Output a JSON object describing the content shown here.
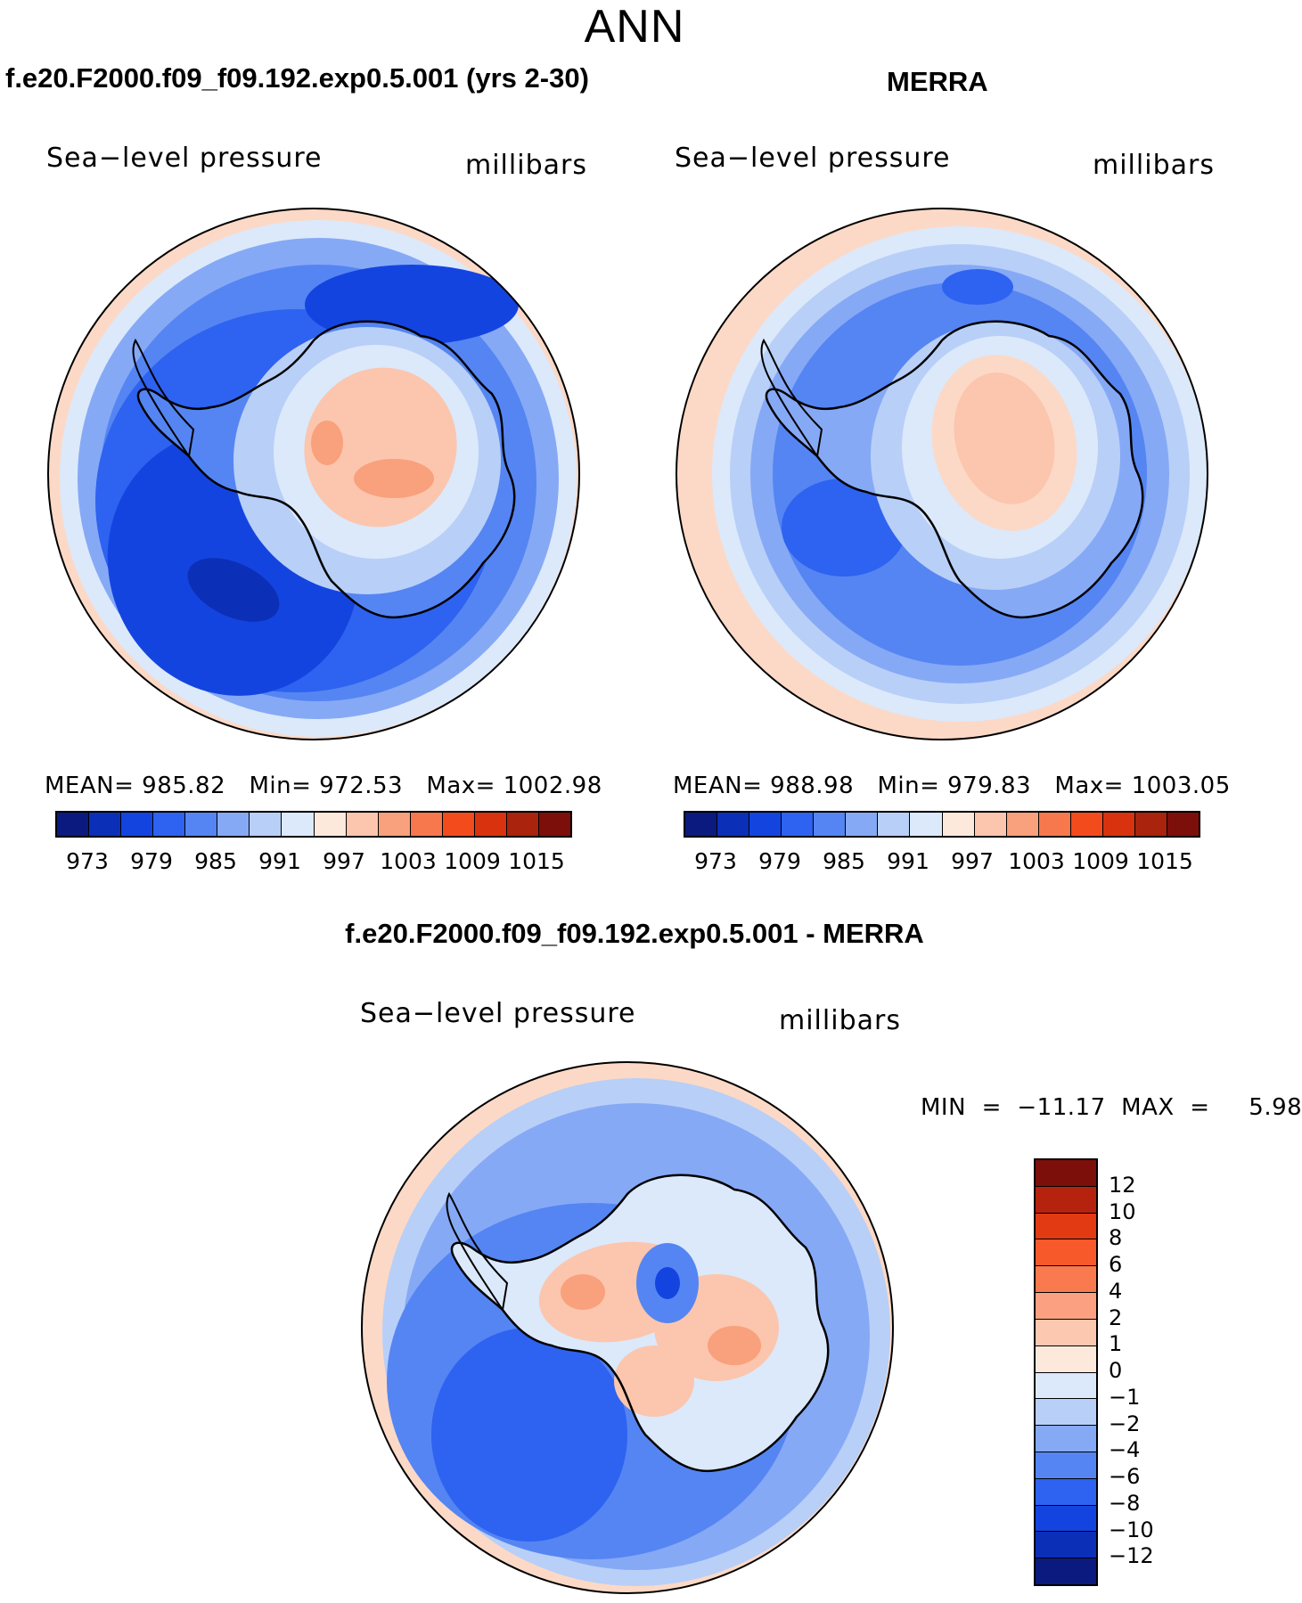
{
  "season": "ANN",
  "panels": {
    "model": {
      "title": "f.e20.F2000.f09_f09.192.exp0.5.001 (yrs 2-30)",
      "variable": "Sea−level pressure",
      "units": "millibars",
      "mean_label": "MEAN=",
      "mean": "985.82",
      "min_label": "Min=",
      "min": "972.53",
      "max_label": "Max=",
      "max": "1002.98"
    },
    "obs": {
      "title": "MERRA",
      "variable": "Sea−level pressure",
      "units": "millibars",
      "mean_label": "MEAN=",
      "mean": "988.98",
      "min_label": "Min=",
      "min": "979.83",
      "max_label": "Max=",
      "max": "1003.05"
    },
    "diff": {
      "title": "f.e20.F2000.f09_f09.192.exp0.5.001 - MERRA",
      "variable": "Sea−level pressure",
      "units": "millibars",
      "minmax_text": "MIN  =  −11.17  MAX  =     5.98"
    }
  },
  "colorbars": {
    "abs": {
      "colors": [
        "#0b1a7e",
        "#0c2fb8",
        "#1444e0",
        "#2e62f0",
        "#5585f2",
        "#86a9f6",
        "#b8cff8",
        "#dbe9fb",
        "#fde9dc",
        "#fbc6ad",
        "#f9a07c",
        "#f8784e",
        "#f44b1d",
        "#d8330e",
        "#a9230d",
        "#7d0f0b"
      ],
      "ticks": [
        "973",
        "979",
        "985",
        "991",
        "997",
        "1003",
        "1009",
        "1015"
      ]
    },
    "diff": {
      "colors": [
        "#7d0f0b",
        "#b5230e",
        "#e23a12",
        "#f8592a",
        "#f97a4f",
        "#fba182",
        "#fcc9b0",
        "#fde9dc",
        "#dbe9fb",
        "#b8cff8",
        "#86a9f6",
        "#5585f2",
        "#2e62f0",
        "#1444e0",
        "#0c2fb8",
        "#0b1a7e"
      ],
      "ticks": [
        "12",
        "10",
        "8",
        "6",
        "4",
        "2",
        "1",
        "0",
        "−1",
        "−2",
        "−4",
        "−6",
        "−8",
        "−10",
        "−12"
      ]
    }
  },
  "map_colors": {
    "ring_warm": "#fcd9c6",
    "ring_light": "#dbe9fb",
    "ocean_mid": "#86a9f6",
    "ocean_blue": "#5585f2",
    "ocean_deep": "#2e62f0",
    "ocean_darker": "#1444e0",
    "low_core": "#0c2fb8",
    "land_light": "#b8cff8",
    "land_pale": "#dbe9fb",
    "land_warm": "#fbc6ad",
    "land_hot": "#f9a07c"
  }
}
